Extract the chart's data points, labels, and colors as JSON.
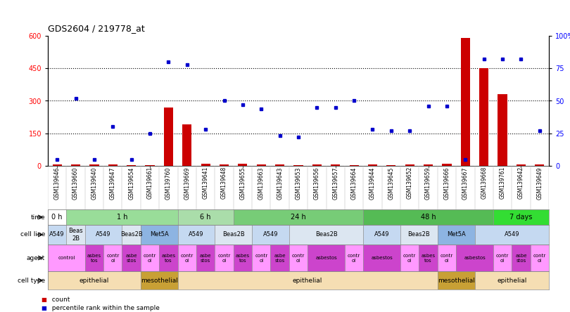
{
  "title": "GDS2604 / 219778_at",
  "samples": [
    "GSM139646",
    "GSM139660",
    "GSM139640",
    "GSM139647",
    "GSM139654",
    "GSM139661",
    "GSM139760",
    "GSM139669",
    "GSM139641",
    "GSM139648",
    "GSM139655",
    "GSM139663",
    "GSM139643",
    "GSM139653",
    "GSM139656",
    "GSM139657",
    "GSM139664",
    "GSM139644",
    "GSM139645",
    "GSM139652",
    "GSM139659",
    "GSM139666",
    "GSM139667",
    "GSM139668",
    "GSM139761",
    "GSM139642",
    "GSM139649"
  ],
  "count_values": [
    5,
    7,
    5,
    5,
    4,
    4,
    270,
    190,
    10,
    7,
    9,
    8,
    5,
    4,
    5,
    5,
    4,
    5,
    4,
    5,
    5,
    10,
    590,
    450,
    330,
    7,
    6
  ],
  "percentile_values": [
    5,
    52,
    5,
    30,
    5,
    25,
    80,
    78,
    28,
    50,
    47,
    44,
    23,
    22,
    45,
    45,
    50,
    28,
    27,
    27,
    46,
    46,
    5,
    82,
    82,
    82,
    27
  ],
  "time_groups": [
    {
      "label": "0 h",
      "start": 0,
      "end": 1,
      "color": "#ffffff"
    },
    {
      "label": "1 h",
      "start": 1,
      "end": 7,
      "color": "#99dd99"
    },
    {
      "label": "6 h",
      "start": 7,
      "end": 10,
      "color": "#aaddaa"
    },
    {
      "label": "24 h",
      "start": 10,
      "end": 17,
      "color": "#77cc77"
    },
    {
      "label": "48 h",
      "start": 17,
      "end": 24,
      "color": "#55bb55"
    },
    {
      "label": "7 days",
      "start": 24,
      "end": 27,
      "color": "#33dd33"
    }
  ],
  "cell_line_groups": [
    {
      "label": "A549",
      "start": 0,
      "end": 1,
      "color": "#c5d9f1"
    },
    {
      "label": "Beas\n2B",
      "start": 1,
      "end": 2,
      "color": "#dce6f1"
    },
    {
      "label": "A549",
      "start": 2,
      "end": 4,
      "color": "#c5d9f1"
    },
    {
      "label": "Beas2B",
      "start": 4,
      "end": 5,
      "color": "#dce6f1"
    },
    {
      "label": "Met5A",
      "start": 5,
      "end": 7,
      "color": "#8db4e2"
    },
    {
      "label": "A549",
      "start": 7,
      "end": 9,
      "color": "#c5d9f1"
    },
    {
      "label": "Beas2B",
      "start": 9,
      "end": 11,
      "color": "#dce6f1"
    },
    {
      "label": "A549",
      "start": 11,
      "end": 13,
      "color": "#c5d9f1"
    },
    {
      "label": "Beas2B",
      "start": 13,
      "end": 17,
      "color": "#dce6f1"
    },
    {
      "label": "A549",
      "start": 17,
      "end": 19,
      "color": "#c5d9f1"
    },
    {
      "label": "Beas2B",
      "start": 19,
      "end": 21,
      "color": "#dce6f1"
    },
    {
      "label": "Met5A",
      "start": 21,
      "end": 23,
      "color": "#8db4e2"
    },
    {
      "label": "A549",
      "start": 23,
      "end": 27,
      "color": "#c5d9f1"
    }
  ],
  "agent_groups": [
    {
      "label": "control",
      "start": 0,
      "end": 2,
      "color": "#ff99ff"
    },
    {
      "label": "asbes\ntos",
      "start": 2,
      "end": 3,
      "color": "#cc44cc"
    },
    {
      "label": "contr\nol",
      "start": 3,
      "end": 4,
      "color": "#ff99ff"
    },
    {
      "label": "asbe\nstos",
      "start": 4,
      "end": 5,
      "color": "#cc44cc"
    },
    {
      "label": "contr\nol",
      "start": 5,
      "end": 6,
      "color": "#ff99ff"
    },
    {
      "label": "asbes\ntos",
      "start": 6,
      "end": 7,
      "color": "#cc44cc"
    },
    {
      "label": "contr\nol",
      "start": 7,
      "end": 8,
      "color": "#ff99ff"
    },
    {
      "label": "asbe\nstos",
      "start": 8,
      "end": 9,
      "color": "#cc44cc"
    },
    {
      "label": "contr\nol",
      "start": 9,
      "end": 10,
      "color": "#ff99ff"
    },
    {
      "label": "asbes\ntos",
      "start": 10,
      "end": 11,
      "color": "#cc44cc"
    },
    {
      "label": "contr\nol",
      "start": 11,
      "end": 12,
      "color": "#ff99ff"
    },
    {
      "label": "asbe\nstos",
      "start": 12,
      "end": 13,
      "color": "#cc44cc"
    },
    {
      "label": "contr\nol",
      "start": 13,
      "end": 14,
      "color": "#ff99ff"
    },
    {
      "label": "asbestos",
      "start": 14,
      "end": 16,
      "color": "#cc44cc"
    },
    {
      "label": "contr\nol",
      "start": 16,
      "end": 17,
      "color": "#ff99ff"
    },
    {
      "label": "asbestos",
      "start": 17,
      "end": 19,
      "color": "#cc44cc"
    },
    {
      "label": "contr\nol",
      "start": 19,
      "end": 20,
      "color": "#ff99ff"
    },
    {
      "label": "asbes\ntos",
      "start": 20,
      "end": 21,
      "color": "#cc44cc"
    },
    {
      "label": "contr\nol",
      "start": 21,
      "end": 22,
      "color": "#ff99ff"
    },
    {
      "label": "asbestos",
      "start": 22,
      "end": 24,
      "color": "#cc44cc"
    },
    {
      "label": "contr\nol",
      "start": 24,
      "end": 25,
      "color": "#ff99ff"
    },
    {
      "label": "asbe\nstos",
      "start": 25,
      "end": 26,
      "color": "#cc44cc"
    },
    {
      "label": "contr\nol",
      "start": 26,
      "end": 27,
      "color": "#ff99ff"
    }
  ],
  "cell_type_groups": [
    {
      "label": "epithelial",
      "start": 0,
      "end": 5,
      "color": "#f5deb3"
    },
    {
      "label": "mesothelial",
      "start": 5,
      "end": 7,
      "color": "#c8a035"
    },
    {
      "label": "epithelial",
      "start": 7,
      "end": 21,
      "color": "#f5deb3"
    },
    {
      "label": "mesothelial",
      "start": 21,
      "end": 23,
      "color": "#c8a035"
    },
    {
      "label": "epithelial",
      "start": 23,
      "end": 27,
      "color": "#f5deb3"
    }
  ],
  "row_labels": [
    "time",
    "cell line",
    "agent",
    "cell type"
  ],
  "ylim_left": [
    0,
    600
  ],
  "ylim_right": [
    0,
    100
  ],
  "yticks_left": [
    0,
    150,
    300,
    450,
    600
  ],
  "yticks_right": [
    0,
    25,
    50,
    75,
    100
  ],
  "bar_color": "#cc0000",
  "dot_color": "#0000cc",
  "background_color": "#ffffff"
}
